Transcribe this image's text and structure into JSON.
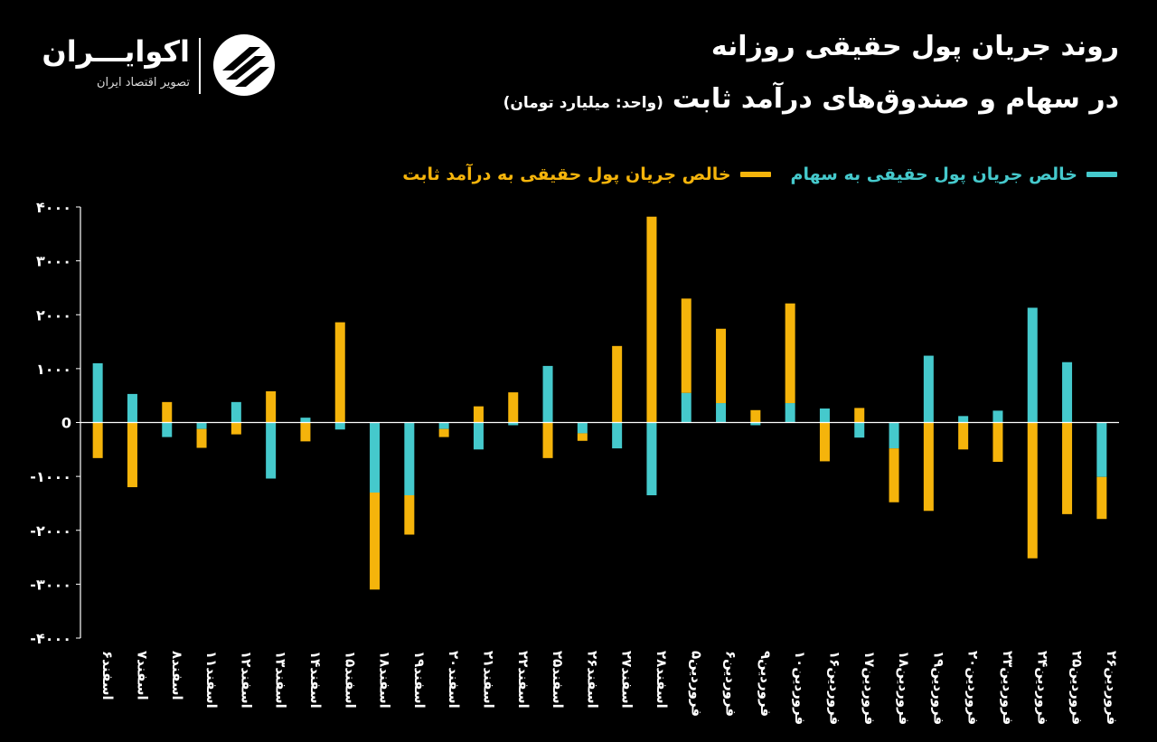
{
  "title_line1": "روند جریان پول حقیقی روزانه",
  "title_line2": "در سهام و صندوق‌های درآمد ثابت",
  "unit_note": "(واحد: میلیارد تومان)",
  "logo": {
    "name": "اکوایـــران",
    "subtitle": "تصویر اقتصاد ایران",
    "mark_icon": "ecoiran-logo-mark"
  },
  "legend": {
    "stock_label": "خالص جریان پول حقیقی به سهام",
    "fixed_label": "خالص جریان پول حقیقی به درآمد ثابت"
  },
  "colors": {
    "stock": "#45c9cc",
    "fixed": "#f5b40b",
    "axis": "#ffffff",
    "background": "#000000"
  },
  "chart_data": {
    "type": "bar",
    "stacked": true,
    "ylim": [
      -4000,
      4000
    ],
    "y_ticks": [
      4000,
      3000,
      2000,
      1000,
      0,
      -1000,
      -2000,
      -3000,
      -4000
    ],
    "y_tick_labels": [
      "۴۰۰۰",
      "۳۰۰۰",
      "۲۰۰۰",
      "۱۰۰۰",
      "0",
      "-۱۰۰۰",
      "-۲۰۰۰",
      "-۳۰۰۰",
      "-۴۰۰۰"
    ],
    "categories": [
      "اسفند۶",
      "اسفند۷",
      "اسفند۸",
      "اسفند۱۱",
      "اسفند۱۲",
      "اسفند۱۳",
      "اسفند۱۴",
      "اسفند۱۵",
      "اسفند۱۸",
      "اسفند۱۹",
      "اسفند۲۰",
      "اسفند۲۱",
      "اسفند۲۲",
      "اسفند۲۵",
      "اسفند۲۶",
      "اسفند۲۷",
      "اسفند۲۸",
      "فروردین۵",
      "فروردین۶",
      "فروردین۹",
      "فروردین۱۰",
      "فروردین۱۶",
      "فروردین۱۷",
      "فروردین۱۸",
      "فروردین۱۹",
      "فروردین۲۰",
      "فروردین۲۳",
      "فروردین۲۴",
      "فروردین۲۵",
      "فروردین۲۶"
    ],
    "series": [
      {
        "name": "خالص جریان پول حقیقی به سهام",
        "values": [
          1100,
          530,
          -270,
          -120,
          380,
          -1040,
          90,
          -130,
          -1300,
          -1350,
          -120,
          -500,
          -50,
          1050,
          -200,
          -480,
          -1350,
          550,
          360,
          -50,
          360,
          260,
          -280,
          -480,
          1240,
          120,
          220,
          2130,
          1120,
          -1010
        ]
      },
      {
        "name": "خالص جریان پول حقیقی به درآمد ثابت",
        "values": [
          -660,
          -1200,
          380,
          -350,
          -220,
          580,
          -350,
          1860,
          -1800,
          -730,
          -150,
          300,
          560,
          -660,
          -140,
          1420,
          3820,
          1750,
          1380,
          230,
          1850,
          -720,
          270,
          -1000,
          -1640,
          -500,
          -730,
          -2520,
          -1700,
          -780
        ]
      }
    ]
  }
}
